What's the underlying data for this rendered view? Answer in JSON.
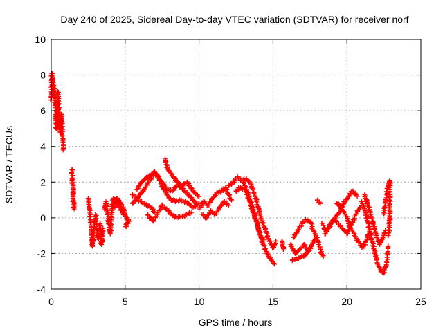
{
  "chart_data": {
    "type": "scatter",
    "title": "Day 240 of 2025, Sidereal Day-to-day VTEC variation (SDTVAR) for receiver norf",
    "xlabel": "GPS time / hours",
    "ylabel": "SDTVAR / TECUs",
    "xlim": [
      0,
      25
    ],
    "ylim": [
      -4,
      10
    ],
    "xticks": [
      "0",
      "5",
      "10",
      "15",
      "20",
      "25"
    ],
    "yticks": [
      "-4",
      "-2",
      "0",
      "2",
      "4",
      "6",
      "8",
      "10"
    ],
    "grid": true,
    "marker": "+",
    "color": "#ff0000",
    "series": [
      {
        "name": "SDTVAR",
        "tracks": [
          [
            [
              0.0,
              6.6
            ],
            [
              0.05,
              8.1
            ],
            [
              0.1,
              7.8
            ],
            [
              0.2,
              7.0
            ],
            [
              0.3,
              6.2
            ],
            [
              0.35,
              5.0
            ],
            [
              0.45,
              7.1
            ],
            [
              0.5,
              6.8
            ],
            [
              0.55,
              5.2
            ],
            [
              0.6,
              4.8
            ],
            [
              0.7,
              5.8
            ],
            [
              0.75,
              4.6
            ],
            [
              0.8,
              3.8
            ]
          ],
          [
            [
              1.4,
              2.7
            ],
            [
              1.45,
              2.0
            ],
            [
              1.5,
              1.5
            ],
            [
              1.5,
              1.0
            ],
            [
              1.55,
              0.5
            ]
          ],
          [
            [
              2.5,
              1.1
            ],
            [
              2.6,
              0.3
            ],
            [
              2.7,
              -0.5
            ],
            [
              2.75,
              -1.2
            ],
            [
              2.8,
              -1.6
            ],
            [
              2.9,
              -0.4
            ],
            [
              3.0,
              0.2
            ],
            [
              3.1,
              -0.8
            ],
            [
              3.2,
              -1.2
            ],
            [
              3.3,
              -0.3
            ],
            [
              3.4,
              -1.5
            ],
            [
              3.5,
              -0.6
            ]
          ],
          [
            [
              3.6,
              0.5
            ],
            [
              3.7,
              0.9
            ],
            [
              3.8,
              0.3
            ],
            [
              3.9,
              -0.3
            ],
            [
              4.0,
              -0.9
            ],
            [
              4.1,
              0.5
            ],
            [
              4.2,
              1.1
            ],
            [
              4.4,
              1.0
            ],
            [
              4.6,
              0.6
            ],
            [
              4.8,
              0.3
            ],
            [
              5.0,
              0.1
            ],
            [
              5.3,
              -0.2
            ]
          ],
          [
            [
              4.3,
              0.6
            ],
            [
              4.5,
              1.1
            ],
            [
              4.7,
              0.8
            ],
            [
              4.9,
              0.4
            ],
            [
              5.1,
              0.0
            ],
            [
              5.2,
              -0.3
            ],
            [
              5.0,
              -0.5
            ]
          ],
          [
            [
              5.5,
              0.8
            ],
            [
              6.0,
              1.3
            ],
            [
              6.5,
              1.9
            ],
            [
              7.0,
              2.5
            ],
            [
              7.3,
              2.2
            ],
            [
              7.6,
              1.6
            ],
            [
              8.0,
              1.1
            ],
            [
              8.4,
              0.9
            ],
            [
              8.8,
              1.0
            ],
            [
              9.2,
              0.8
            ],
            [
              9.6,
              0.6
            ],
            [
              10.0,
              0.8
            ]
          ],
          [
            [
              5.8,
              1.6
            ],
            [
              6.2,
              2.1
            ],
            [
              6.6,
              2.3
            ],
            [
              7.0,
              2.6
            ],
            [
              7.4,
              2.1
            ],
            [
              7.8,
              1.6
            ],
            [
              8.2,
              1.5
            ],
            [
              8.6,
              1.9
            ],
            [
              9.0,
              1.5
            ],
            [
              9.4,
              1.2
            ],
            [
              9.8,
              0.8
            ]
          ],
          [
            [
              5.5,
              1.3
            ],
            [
              5.9,
              1.0
            ],
            [
              6.3,
              0.8
            ],
            [
              6.7,
              0.6
            ],
            [
              7.0,
              0.3
            ]
          ],
          [
            [
              6.5,
              0.2
            ],
            [
              6.9,
              -0.2
            ],
            [
              7.2,
              0.3
            ],
            [
              7.5,
              0.7
            ],
            [
              7.8,
              0.5
            ],
            [
              8.1,
              0.2
            ],
            [
              8.5,
              0.0
            ],
            [
              9.0,
              0.1
            ],
            [
              9.5,
              0.3
            ]
          ],
          [
            [
              7.7,
              3.3
            ],
            [
              7.9,
              2.7
            ],
            [
              8.1,
              2.5
            ],
            [
              8.4,
              2.1
            ],
            [
              8.8,
              1.8
            ],
            [
              9.2,
              2.0
            ],
            [
              9.6,
              1.5
            ],
            [
              10.0,
              1.2
            ]
          ],
          [
            [
              10.0,
              0.5
            ],
            [
              10.3,
              0.9
            ],
            [
              10.6,
              0.7
            ],
            [
              10.9,
              1.1
            ],
            [
              11.2,
              1.4
            ],
            [
              11.5,
              1.5
            ],
            [
              11.8,
              1.7
            ],
            [
              12.0,
              1.3
            ],
            [
              12.2,
              1.0
            ]
          ],
          [
            [
              10.2,
              0.2
            ],
            [
              10.5,
              0.0
            ],
            [
              10.8,
              0.4
            ],
            [
              11.1,
              0.2
            ],
            [
              11.4,
              0.6
            ],
            [
              11.7,
              0.9
            ],
            [
              12.0,
              0.7
            ]
          ],
          [
            [
              12.0,
              1.8
            ],
            [
              12.3,
              2.0
            ],
            [
              12.6,
              2.3
            ],
            [
              12.9,
              2.1
            ],
            [
              13.2,
              2.2
            ],
            [
              13.5,
              1.9
            ],
            [
              13.8,
              1.2
            ],
            [
              14.1,
              0.3
            ],
            [
              14.4,
              -0.5
            ],
            [
              14.7,
              -1.2
            ],
            [
              15.0,
              -1.7
            ],
            [
              15.2,
              -1.3
            ]
          ],
          [
            [
              12.5,
              1.5
            ],
            [
              12.8,
              1.7
            ],
            [
              13.1,
              1.6
            ],
            [
              13.4,
              1.0
            ],
            [
              13.7,
              0.2
            ],
            [
              14.0,
              -0.6
            ],
            [
              14.3,
              -1.4
            ],
            [
              14.6,
              -2.0
            ],
            [
              14.9,
              -2.4
            ],
            [
              15.1,
              -2.6
            ]
          ],
          [
            [
              13.0,
              2.0
            ],
            [
              13.3,
              1.4
            ],
            [
              13.6,
              0.6
            ],
            [
              13.9,
              -0.2
            ],
            [
              14.1,
              -0.9
            ],
            [
              14.4,
              -1.3
            ]
          ],
          [
            [
              15.6,
              -1.3
            ],
            [
              15.7,
              -1.8
            ]
          ],
          [
            [
              16.2,
              -1.5
            ],
            [
              16.5,
              -2.0
            ],
            [
              16.8,
              -1.8
            ],
            [
              17.1,
              -1.5
            ],
            [
              17.4,
              -1.9
            ],
            [
              17.7,
              -1.4
            ],
            [
              18.0,
              -1.1
            ]
          ],
          [
            [
              16.3,
              -2.4
            ],
            [
              16.6,
              -2.3
            ],
            [
              16.9,
              -2.2
            ],
            [
              17.2,
              -2.1
            ],
            [
              17.5,
              -1.7
            ],
            [
              17.8,
              -1.3
            ]
          ],
          [
            [
              16.4,
              -1.1
            ],
            [
              16.8,
              -0.5
            ],
            [
              17.2,
              -0.1
            ],
            [
              17.5,
              -0.2
            ],
            [
              17.8,
              -0.8
            ],
            [
              18.1,
              -1.5
            ],
            [
              18.4,
              -2.2
            ]
          ],
          [
            [
              18.0,
              1.0
            ],
            [
              18.2,
              0.8
            ]
          ],
          [
            [
              18.3,
              -0.3
            ],
            [
              18.6,
              -0.8
            ],
            [
              18.9,
              -0.4
            ],
            [
              19.2,
              0.0
            ],
            [
              19.5,
              0.3
            ],
            [
              19.8,
              0.8
            ],
            [
              20.1,
              1.2
            ],
            [
              20.4,
              1.5
            ],
            [
              20.7,
              1.2
            ]
          ],
          [
            [
              18.5,
              -0.9
            ],
            [
              18.8,
              -0.5
            ],
            [
              19.1,
              -0.1
            ],
            [
              19.4,
              -0.3
            ],
            [
              19.7,
              -0.6
            ],
            [
              20.0,
              -0.9
            ],
            [
              20.3,
              -0.4
            ],
            [
              20.6,
              0.2
            ],
            [
              20.9,
              0.6
            ]
          ],
          [
            [
              19.3,
              0.8
            ],
            [
              19.6,
              0.6
            ],
            [
              19.9,
              0.2
            ],
            [
              20.2,
              -0.5
            ],
            [
              20.5,
              -1.0
            ],
            [
              20.8,
              -1.4
            ],
            [
              21.1,
              -1.7
            ],
            [
              21.3,
              -1.3
            ],
            [
              21.5,
              -0.8
            ]
          ],
          [
            [
              21.0,
              0.9
            ],
            [
              21.2,
              0.5
            ],
            [
              21.4,
              -0.2
            ],
            [
              21.6,
              -0.9
            ],
            [
              21.8,
              -1.6
            ],
            [
              22.0,
              -2.2
            ],
            [
              22.1,
              -2.7
            ],
            [
              22.3,
              -3.0
            ],
            [
              22.5,
              -3.1
            ],
            [
              22.7,
              -2.5
            ],
            [
              22.8,
              -1.6
            ]
          ],
          [
            [
              21.2,
              1.3
            ],
            [
              21.4,
              0.8
            ],
            [
              21.6,
              0.2
            ],
            [
              21.8,
              -0.4
            ],
            [
              22.0,
              -1.0
            ],
            [
              22.2,
              -1.5
            ],
            [
              22.4,
              -1.2
            ],
            [
              22.6,
              -0.7
            ]
          ],
          [
            [
              22.5,
              0.2
            ],
            [
              22.6,
              0.7
            ],
            [
              22.7,
              1.3
            ],
            [
              22.8,
              1.9
            ],
            [
              22.9,
              2.1
            ],
            [
              22.9,
              -0.3
            ],
            [
              22.8,
              -1.0
            ]
          ]
        ]
      }
    ]
  }
}
